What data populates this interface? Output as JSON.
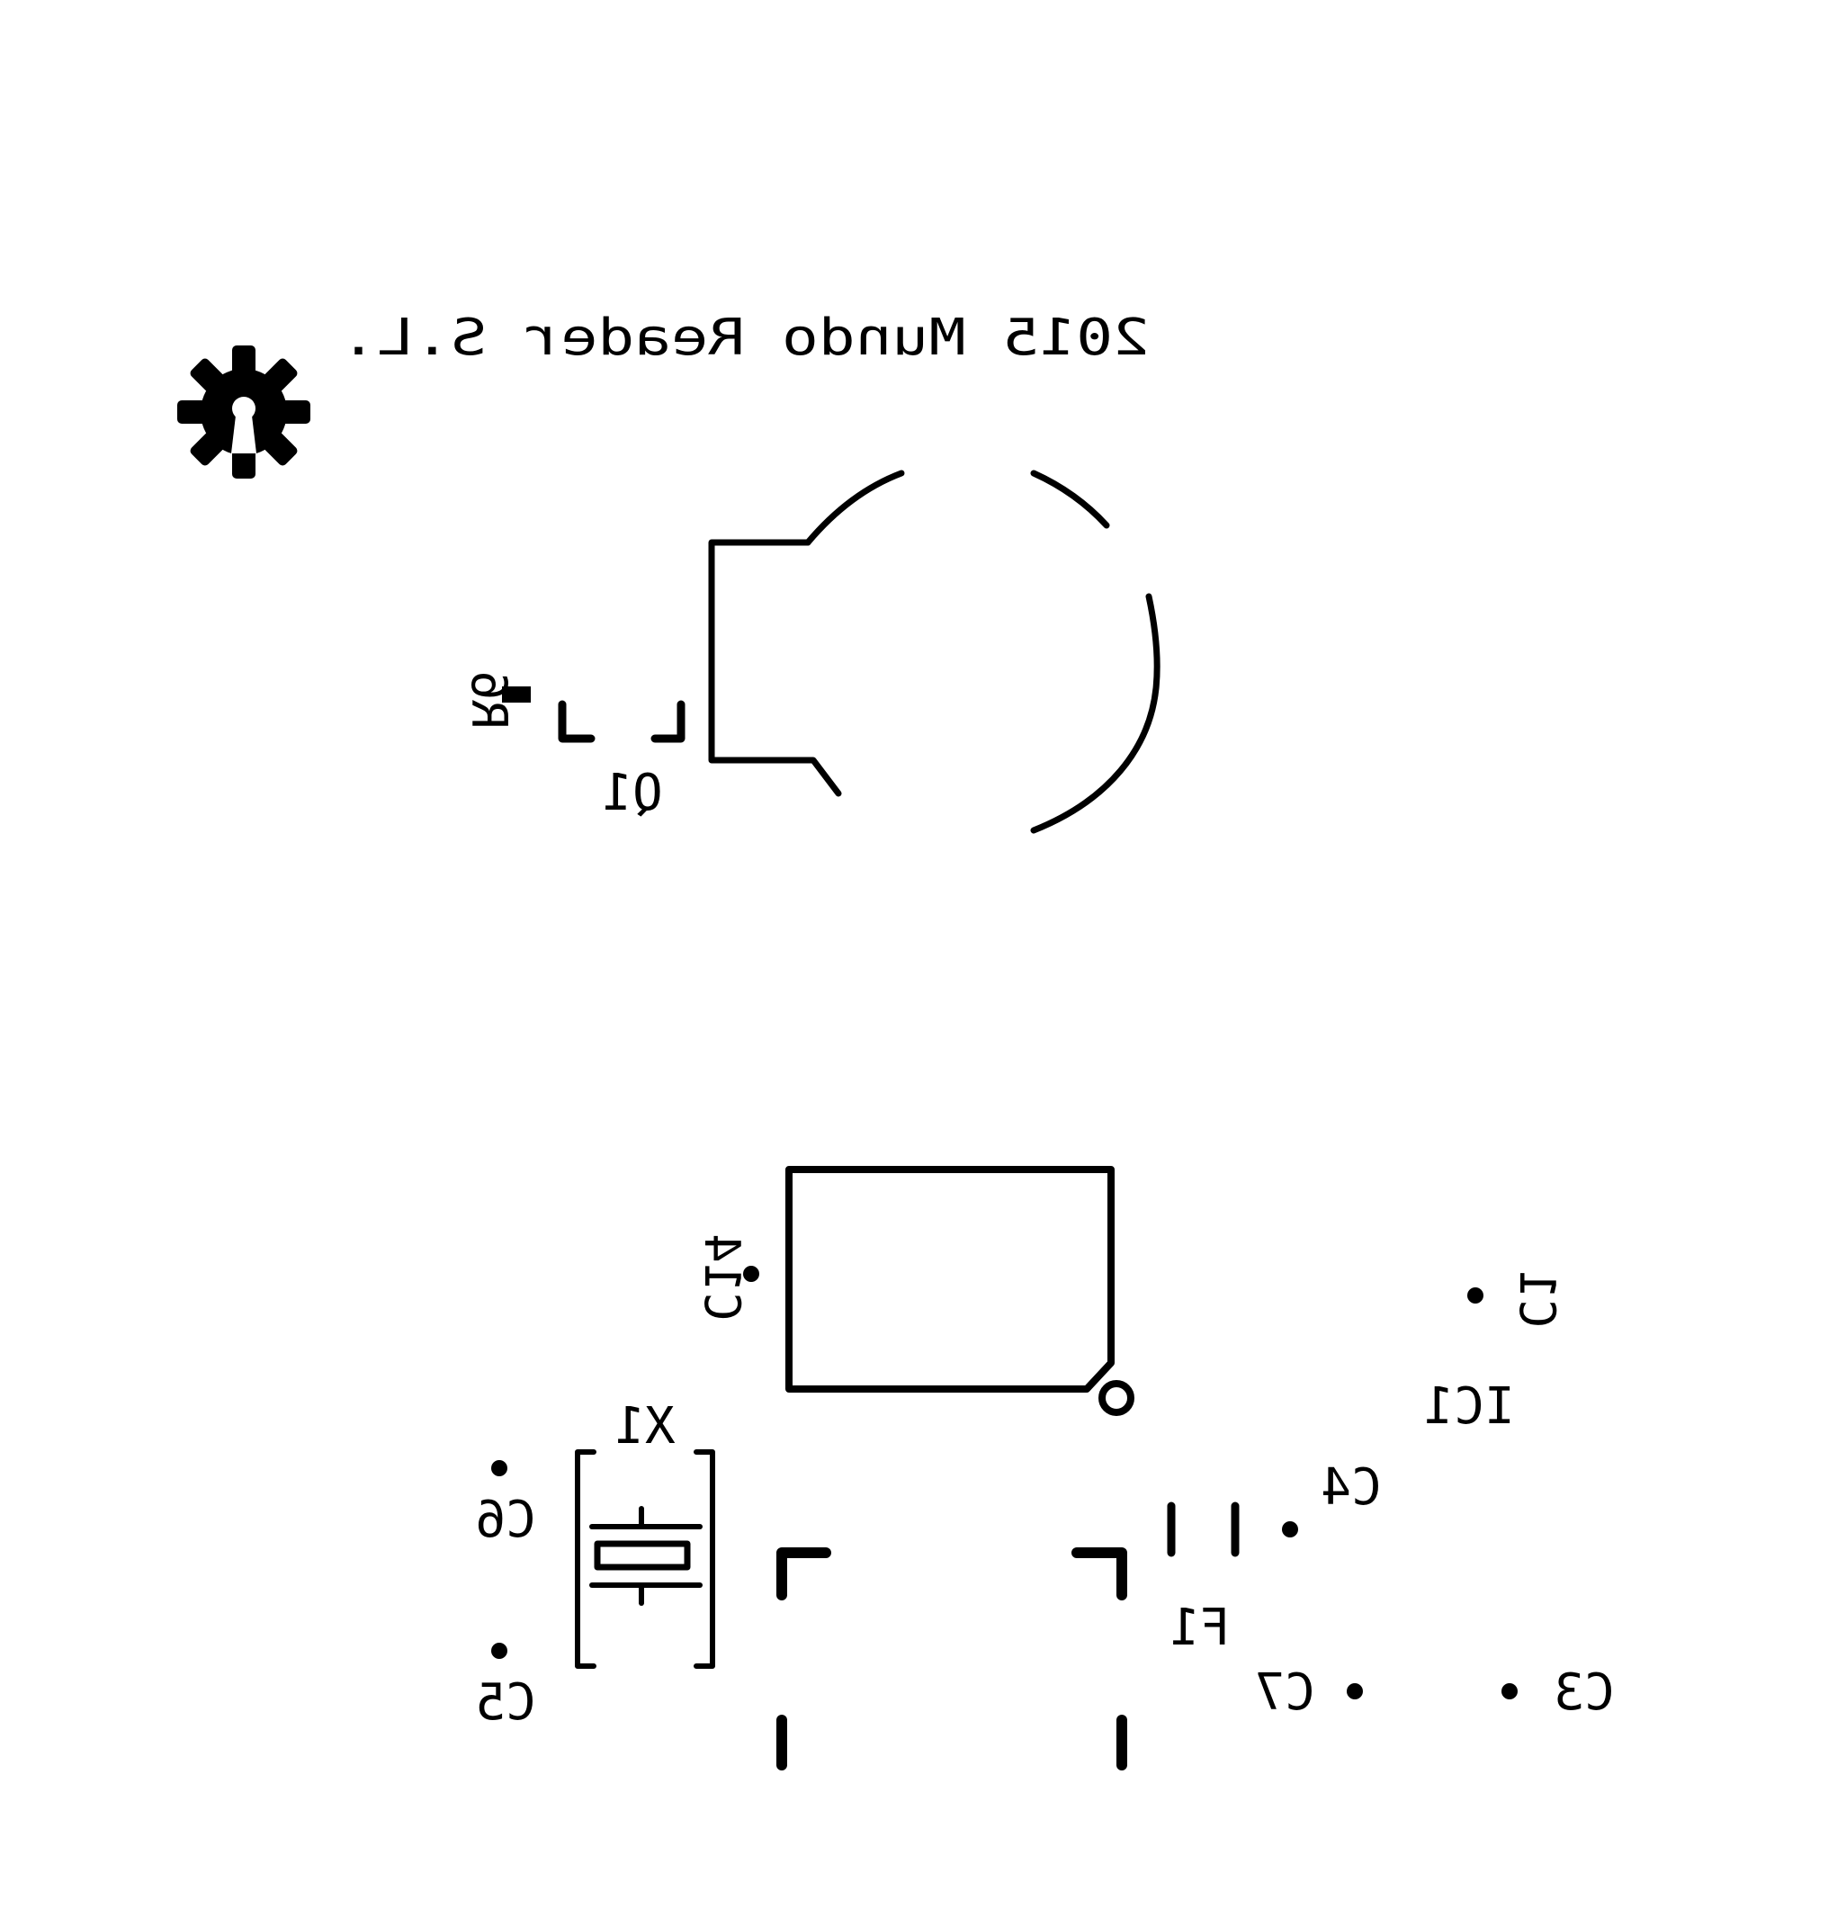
{
  "board": {
    "copyright": "2015 Mundo Reader S.L.",
    "logo_icon": "open-hardware-gear-icon",
    "ink_color": "#000000",
    "background_color": "#ffffff",
    "mirrored": true
  },
  "designators": {
    "q1": "Q1",
    "r6": "R6",
    "c14": "C14",
    "c1": "C1",
    "ic1": "IC1",
    "x1": "X1",
    "c4": "C4",
    "c6": "C6",
    "c5": "C5",
    "f1": "F1",
    "c7": "C7",
    "c3": "C3"
  }
}
